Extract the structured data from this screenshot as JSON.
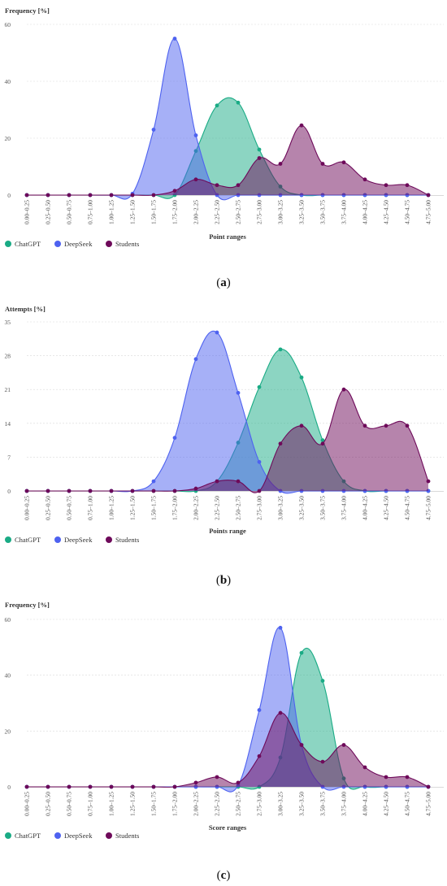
{
  "chart_data": [
    {
      "type": "area",
      "panel": "a",
      "caption_letter": "a",
      "ylabel": "Frequency [%]",
      "xlabel": "Point ranges",
      "ylim": [
        0,
        60
      ],
      "yticks": [
        0,
        20,
        40,
        60
      ],
      "categories": [
        "0.00–0.25",
        "0.25–0.50",
        "0.50–0.75",
        "0.75–1.00",
        "1.00–1.25",
        "1.25–1.50",
        "1.50–1.75",
        "1.75–2.00",
        "2.00–2.25",
        "2.25–2.50",
        "2.50–2.75",
        "2.75–3.00",
        "3.00–3.25",
        "3.25–3.50",
        "3.50–3.75",
        "3.75–4.00",
        "4.00–4.25",
        "4.25–4.50",
        "4.50–4.75",
        "4.75–5.00"
      ],
      "series": [
        {
          "name": "ChatGPT",
          "color": "#1aab85",
          "values": [
            0,
            0,
            0,
            0,
            0,
            0,
            0,
            0,
            15.5,
            31.5,
            32.5,
            16,
            3,
            0,
            0,
            0,
            0,
            0,
            0,
            0
          ]
        },
        {
          "name": "DeepSeek",
          "color": "#4e62f0",
          "values": [
            0,
            0,
            0,
            0,
            0,
            0.5,
            23,
            55,
            21,
            0,
            0,
            0,
            0,
            0,
            0,
            0,
            0,
            0,
            0,
            0
          ]
        },
        {
          "name": "Students",
          "color": "#6e0a5a",
          "values": [
            0,
            0,
            0,
            0,
            0,
            0,
            0,
            1.5,
            5.5,
            3.5,
            3.5,
            13,
            11,
            24.5,
            11,
            11.5,
            5.5,
            3.5,
            3.5,
            0
          ]
        }
      ],
      "legend": "bottom-left",
      "grid": true
    },
    {
      "type": "area",
      "panel": "b",
      "caption_letter": "b",
      "ylabel": "Attempts [%]",
      "xlabel": "Points range",
      "ylim": [
        0,
        35
      ],
      "yticks": [
        0,
        7,
        14,
        21,
        28,
        35
      ],
      "categories": [
        "0.00–0.25",
        "0.25–0.50",
        "0.50–0.75",
        "0.75–1.00",
        "1.00–1.25",
        "1.25–1.50",
        "1.50–1.75",
        "1.75–2.00",
        "2.00–2.25",
        "2.25–2.50",
        "2.50–2.75",
        "2.75–3.00",
        "3.00–3.25",
        "3.25–3.50",
        "3.50–3.75",
        "3.75–4.00",
        "4.00–4.25",
        "4.25–4.50",
        "4.50–4.75",
        "4.75–5.00"
      ],
      "series": [
        {
          "name": "ChatGPT",
          "color": "#1aab85",
          "values": [
            0,
            0,
            0,
            0,
            0,
            0,
            0,
            0,
            0,
            2,
            10,
            21.5,
            29.3,
            23.5,
            10.5,
            2,
            0,
            0,
            0,
            0
          ]
        },
        {
          "name": "DeepSeek",
          "color": "#4e62f0",
          "values": [
            0,
            0,
            0,
            0,
            0,
            0,
            2,
            11,
            27.3,
            32.8,
            20.3,
            6,
            0,
            0,
            0,
            0,
            0,
            0,
            0,
            0
          ]
        },
        {
          "name": "Students",
          "color": "#6e0a5a",
          "values": [
            0,
            0,
            0,
            0,
            0,
            0,
            0,
            0,
            0.5,
            2,
            2,
            0,
            9.8,
            13.5,
            9.8,
            21,
            13.5,
            13.5,
            13.5,
            2
          ]
        }
      ],
      "legend": "bottom-left",
      "grid": true
    },
    {
      "type": "area",
      "panel": "c",
      "caption_letter": "c",
      "ylabel": "Frequency [%]",
      "xlabel": "Score ranges",
      "ylim": [
        0,
        60
      ],
      "yticks": [
        0,
        20,
        40,
        60
      ],
      "categories": [
        "0.00–0.25",
        "0.25–0.50",
        "0.50–0.75",
        "0.75–1.00",
        "1.00–1.25",
        "1.25–1.50",
        "1.50–1.75",
        "1.75–2.00",
        "2.00–2.25",
        "2.25–2.50",
        "2.50–2.75",
        "2.75–3.00",
        "3.00–3.25",
        "3.25–3.50",
        "3.50–3.75",
        "3.75–4.00",
        "4.00–4.25",
        "4.25–4.50",
        "4.50–4.75",
        "4.75–5.00"
      ],
      "series": [
        {
          "name": "ChatGPT",
          "color": "#1aab85",
          "values": [
            0,
            0,
            0,
            0,
            0,
            0,
            0,
            0,
            0,
            0,
            0,
            0,
            10.5,
            48,
            38,
            3,
            0,
            0,
            0,
            0
          ]
        },
        {
          "name": "DeepSeek",
          "color": "#4e62f0",
          "values": [
            0,
            0,
            0,
            0,
            0,
            0,
            0,
            0,
            0,
            0,
            0.5,
            27.5,
            57,
            15,
            0,
            0,
            0,
            0,
            0,
            0
          ]
        },
        {
          "name": "Students",
          "color": "#6e0a5a",
          "values": [
            0,
            0,
            0,
            0,
            0,
            0,
            0,
            0,
            1.5,
            3.5,
            1.5,
            11,
            26.5,
            15,
            9,
            15,
            7,
            3.5,
            3.5,
            0
          ]
        }
      ],
      "legend": "bottom-left",
      "grid": true
    }
  ]
}
